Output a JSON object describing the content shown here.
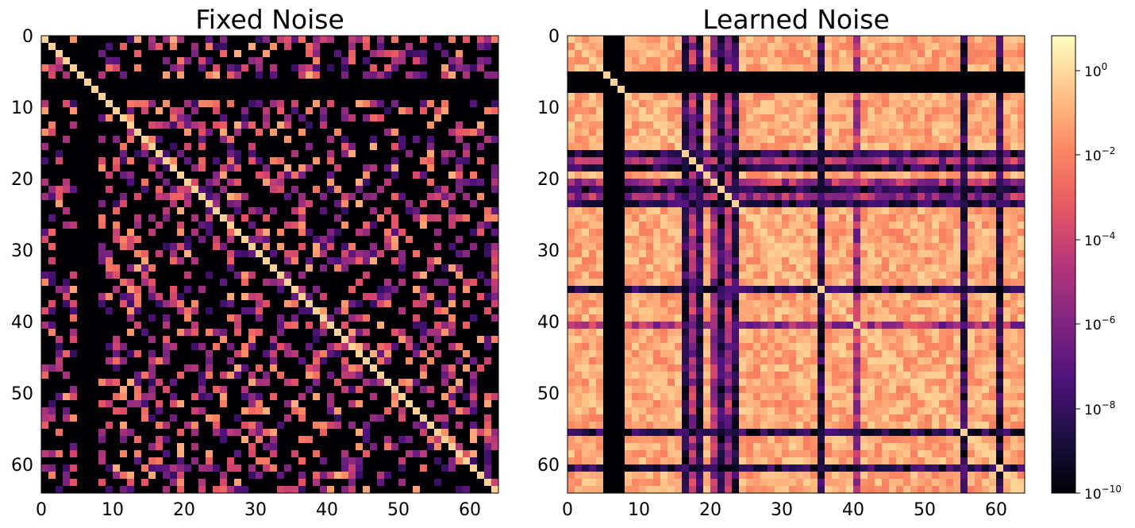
{
  "chart_data": [
    {
      "type": "heatmap",
      "title": "Fixed Noise",
      "xlabel": "",
      "ylabel": "",
      "grid_size": 64,
      "x_ticks": [
        "0",
        "10",
        "20",
        "30",
        "40",
        "50",
        "60"
      ],
      "y_ticks": [
        "0",
        "10",
        "20",
        "30",
        "40",
        "50",
        "60"
      ],
      "scale": "log",
      "colormap": "magma",
      "structure": {
        "diagonal_value": 1,
        "offdiagonal": "sparse values between 1e-8 and 1e-1, most cells at or below 1e-10",
        "near_zero_rows": [
          6,
          7,
          8
        ],
        "near_zero_columns": [
          5,
          6,
          7
        ]
      }
    },
    {
      "type": "heatmap",
      "title": "Learned Noise",
      "xlabel": "",
      "ylabel": "",
      "grid_size": 64,
      "x_ticks": [
        "0",
        "10",
        "20",
        "30",
        "40",
        "50",
        "60"
      ],
      "y_ticks": [
        "0",
        "10",
        "20",
        "30",
        "40",
        "50",
        "60"
      ],
      "scale": "log",
      "colormap": "magma",
      "structure": {
        "diagonal_value": 1,
        "offdiagonal": "dense values mostly between 1e-2 and 1e0",
        "zero_rows": [
          5,
          6,
          7
        ],
        "zero_columns": [
          5,
          6,
          7
        ],
        "dark_lines": [
          16,
          18,
          21,
          23,
          35,
          55,
          60
        ],
        "mid_lines": [
          17,
          20,
          22,
          40
        ]
      }
    }
  ],
  "colorbar": {
    "scale": "log",
    "range": [
      1e-10,
      10
    ],
    "tick_labels": [
      {
        "base": "10",
        "exp": "0"
      },
      {
        "base": "10",
        "exp": "−2"
      },
      {
        "base": "10",
        "exp": "−4"
      },
      {
        "base": "10",
        "exp": "−6"
      },
      {
        "base": "10",
        "exp": "−8"
      },
      {
        "base": "10",
        "exp": "−10"
      }
    ]
  }
}
